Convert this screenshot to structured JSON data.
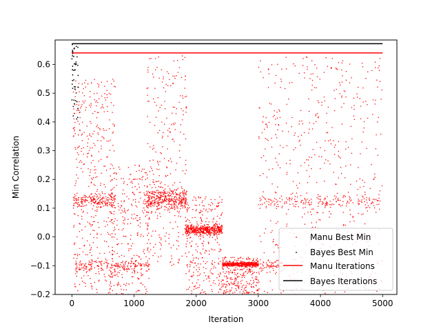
{
  "chart_data": {
    "type": "scatter",
    "xlabel": "Iteration",
    "ylabel": "Min Correlation",
    "xlim": [
      -270,
      5230
    ],
    "ylim": [
      -0.2,
      0.685
    ],
    "xticks": [
      0,
      1000,
      2000,
      3000,
      4000,
      5000
    ],
    "yticks": [
      -0.2,
      -0.1,
      0.0,
      0.1,
      0.2,
      0.3,
      0.4,
      0.5,
      0.6
    ],
    "ytick_labels": [
      "−0.2",
      "−0.1",
      "0.0",
      "0.1",
      "0.2",
      "0.3",
      "0.4",
      "0.5",
      "0.6"
    ],
    "xtick_labels": [
      "0",
      "1000",
      "2000",
      "3000",
      "4000",
      "5000"
    ],
    "grid": false,
    "legend_position": "lower-right",
    "series": [
      {
        "name": "Manu Best Min",
        "kind": "scatter",
        "color": "#ff0000",
        "marker": "point",
        "clusters": [
          {
            "x": [
              20,
              700
            ],
            "y_center": 0.125,
            "y_spread": 0.012,
            "count": 170
          },
          {
            "x": [
              20,
              1250
            ],
            "y_center": -0.1,
            "y_spread": 0.012,
            "count": 170
          },
          {
            "x": [
              1200,
              1850
            ],
            "y_center": 0.13,
            "y_spread": 0.02,
            "count": 380
          },
          {
            "x": [
              1830,
              2420
            ],
            "y_center": 0.025,
            "y_spread": 0.008,
            "count": 420
          },
          {
            "x": [
              2420,
              3000
            ],
            "y_center": -0.095,
            "y_spread": 0.004,
            "count": 420
          },
          {
            "x": [
              3000,
              4950
            ],
            "y_center": 0.125,
            "y_spread": 0.012,
            "count": 170
          },
          {
            "x": [
              3000,
              3400
            ],
            "y_center": -0.1,
            "y_spread": 0.01,
            "count": 60
          }
        ],
        "scattered": [
          {
            "x": [
              20,
              700
            ],
            "y": [
              -0.2,
              0.55
            ],
            "count": 420
          },
          {
            "x": [
              600,
              1250
            ],
            "y": [
              -0.2,
              0.25
            ],
            "count": 320
          },
          {
            "x": [
              1200,
              1850
            ],
            "y": [
              -0.1,
              0.63
            ],
            "count": 260
          },
          {
            "x": [
              1830,
              2420
            ],
            "y": [
              -0.2,
              0.14
            ],
            "count": 280
          },
          {
            "x": [
              2420,
              3000
            ],
            "y": [
              -0.2,
              -0.07
            ],
            "count": 260
          },
          {
            "x": [
              3000,
              5000
            ],
            "y": [
              -0.2,
              0.63
            ],
            "count": 560
          }
        ]
      },
      {
        "name": "Bayes Best Min",
        "kind": "scatter",
        "color": "#000000",
        "marker": "point",
        "x_range": [
          0,
          100
        ],
        "y_range": [
          0.38,
          0.67
        ],
        "count": 45
      },
      {
        "name": "Manu Iterations",
        "kind": "line",
        "color": "#ff0000",
        "x": [
          0,
          5000
        ],
        "y": [
          0.64,
          0.64
        ]
      },
      {
        "name": "Bayes Iterations",
        "kind": "line",
        "color": "#000000",
        "x": [
          0,
          5000
        ],
        "y": [
          0.672,
          0.672
        ]
      }
    ]
  }
}
